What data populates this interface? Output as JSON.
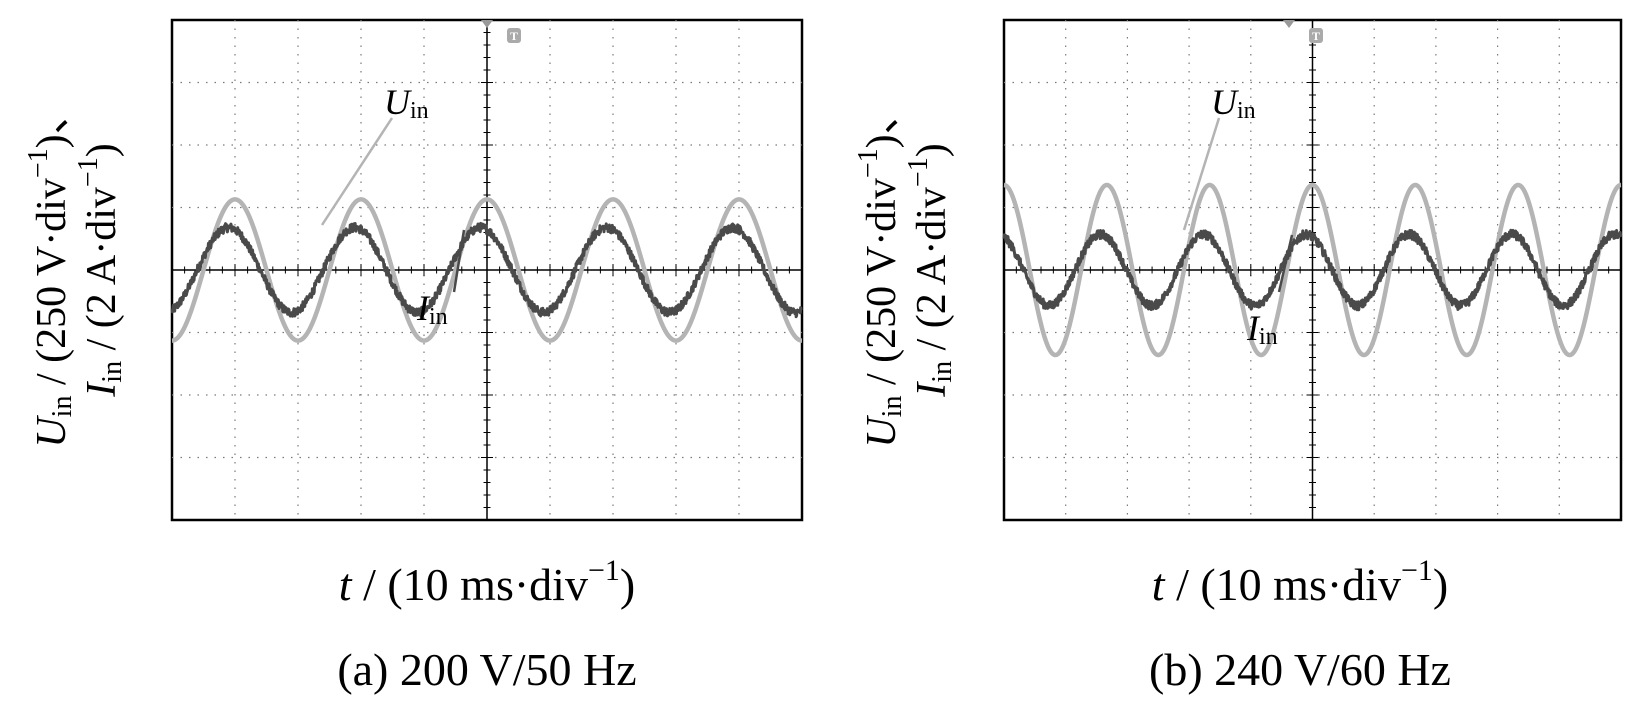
{
  "figure": {
    "background": "#ffffff",
    "panels": [
      {
        "id": "a",
        "caption": "(a)  200 V/50 Hz",
        "xlabel_sym": "t",
        "xlabel_rest": " / (10 ms·div",
        "xlabel_sup": "−1",
        "xlabel_close": ")",
        "ylabel_u_sym": "U",
        "ylabel_u_sub": "in",
        "ylabel_u_rest": " / (250 V·div",
        "ylabel_u_sup": "−1",
        "ylabel_u_close": ")、",
        "ylabel_i_sym": "I",
        "ylabel_i_sub": "in",
        "ylabel_i_rest": " / (2 A·div",
        "ylabel_i_sup": "−1",
        "ylabel_i_close": ")",
        "label_u_sym": "U",
        "label_u_sub": "in",
        "label_i_sym": "I",
        "label_i_sub": "in",
        "trigger_marker": "T"
      },
      {
        "id": "b",
        "caption": "(b)  240 V/60 Hz",
        "xlabel_sym": "t",
        "xlabel_rest": " / (10 ms·div",
        "xlabel_sup": "−1",
        "xlabel_close": ")",
        "ylabel_u_sym": "U",
        "ylabel_u_sub": "in",
        "ylabel_u_rest": " / (250 V·div",
        "ylabel_u_sup": "−1",
        "ylabel_u_close": ")、",
        "ylabel_i_sym": "I",
        "ylabel_i_sub": "in",
        "ylabel_i_rest": " / (2 A·div",
        "ylabel_i_sup": "−1",
        "ylabel_i_close": ")",
        "label_u_sym": "U",
        "label_u_sub": "in",
        "label_i_sym": "I",
        "label_i_sub": "in",
        "trigger_marker": "T"
      }
    ]
  },
  "chart_data": [
    {
      "type": "line",
      "title": "(a)  200 V/50 Hz",
      "xlabel": "t / (10 ms·div−1)",
      "ylabel": "Uin / (250 V·div−1)、Iin / (2 A·div−1)",
      "x_unit": "div",
      "y_unit": "div",
      "xlim": [
        -5,
        5
      ],
      "ylim": [
        -4,
        4
      ],
      "x_divisions": 10,
      "y_divisions": 8,
      "grid": true,
      "series": [
        {
          "name": "Uin",
          "color": "#b4b4b4",
          "frequency_hz": 50,
          "amplitude_div": 1.13,
          "amplitude_value": "282.8 V",
          "peak_x_div": 0.0,
          "noise_div": 0.0
        },
        {
          "name": "Iin",
          "color": "#4a4a4a",
          "frequency_hz": 50,
          "amplitude_div": 0.68,
          "peak_x_div": -0.1,
          "noise_div": 0.07
        }
      ]
    },
    {
      "type": "line",
      "title": "(b)  240 V/60 Hz",
      "xlabel": "t / (10 ms·div−1)",
      "ylabel": "Uin / (250 V·div−1)、Iin / (2 A·div−1)",
      "x_unit": "div",
      "y_unit": "div",
      "xlim": [
        -5,
        5
      ],
      "ylim": [
        -4,
        4
      ],
      "x_divisions": 10,
      "y_divisions": 8,
      "grid": true,
      "series": [
        {
          "name": "Uin",
          "color": "#b4b4b4",
          "frequency_hz": 60,
          "amplitude_div": 1.36,
          "amplitude_value": "339.4 V",
          "peak_x_div": 0.0,
          "noise_div": 0.0
        },
        {
          "name": "Iin",
          "color": "#4a4a4a",
          "frequency_hz": 60,
          "amplitude_div": 0.57,
          "peak_x_div": -0.1,
          "noise_div": 0.07
        }
      ]
    }
  ]
}
